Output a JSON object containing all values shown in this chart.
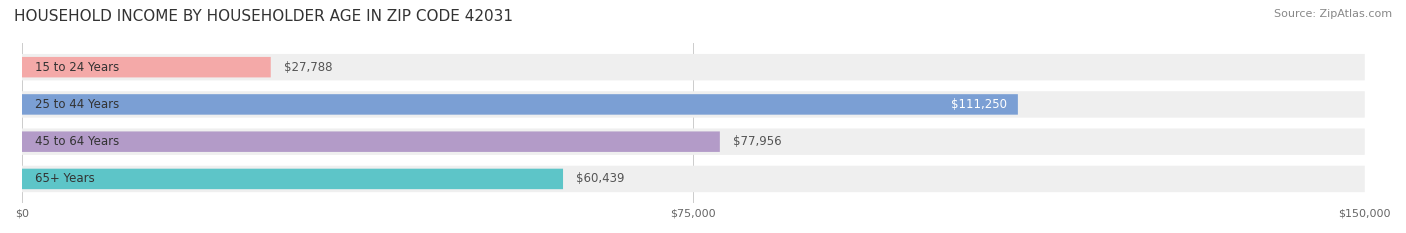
{
  "title": "HOUSEHOLD INCOME BY HOUSEHOLDER AGE IN ZIP CODE 42031",
  "source": "Source: ZipAtlas.com",
  "categories": [
    "15 to 24 Years",
    "25 to 44 Years",
    "45 to 64 Years",
    "65+ Years"
  ],
  "values": [
    27788,
    111250,
    77956,
    60439
  ],
  "bar_colors": [
    "#f4a9a8",
    "#7b9fd4",
    "#b39bc8",
    "#5dc5c8"
  ],
  "row_bg_colors": [
    "#f5f5f5",
    "#f5f5f5",
    "#f5f5f5",
    "#f5f5f5"
  ],
  "label_bg_colors": [
    "#f4a9a8",
    "#7b9fd4",
    "#b39bc8",
    "#5dc5c8"
  ],
  "value_labels": [
    "$27,788",
    "$111,250",
    "$77,956",
    "$60,439"
  ],
  "xlim": [
    0,
    150000
  ],
  "xticks": [
    0,
    75000,
    150000
  ],
  "xticklabels": [
    "$0",
    "$75,000",
    "$150,000"
  ],
  "figsize": [
    14.06,
    2.33
  ],
  "dpi": 100,
  "title_fontsize": 11,
  "source_fontsize": 8,
  "bar_height": 0.55,
  "value_label_color_inside": "#ffffff",
  "value_label_color_outside": "#555555",
  "label_fontsize": 8.5,
  "value_fontsize": 8.5
}
